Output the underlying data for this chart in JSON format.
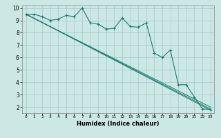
{
  "title": "",
  "xlabel": "Humidex (Indice chaleur)",
  "bg_color": "#cce8e4",
  "grid_color": "#aacccc",
  "line_color": "#1a7a6e",
  "xlim": [
    -0.5,
    23.5
  ],
  "ylim": [
    1.5,
    10.2
  ],
  "yticks": [
    2,
    3,
    4,
    5,
    6,
    7,
    8,
    9,
    10
  ],
  "xticks": [
    0,
    1,
    2,
    3,
    4,
    5,
    6,
    7,
    8,
    9,
    10,
    11,
    12,
    13,
    14,
    15,
    16,
    17,
    18,
    19,
    20,
    21,
    22,
    23
  ],
  "series1_x": [
    0,
    1,
    2,
    3,
    4,
    5,
    6,
    7,
    8,
    9,
    10,
    11,
    12,
    13,
    14,
    15,
    16,
    17,
    18,
    19,
    20,
    21,
    22,
    23
  ],
  "series1_y": [
    9.5,
    9.5,
    9.3,
    9.0,
    9.1,
    9.4,
    9.3,
    10.0,
    8.8,
    8.7,
    8.3,
    8.35,
    9.2,
    8.5,
    8.45,
    8.8,
    6.35,
    6.0,
    6.6,
    3.8,
    3.8,
    2.8,
    1.85,
    1.8
  ],
  "series2_x": [
    0,
    23
  ],
  "series2_y": [
    9.5,
    1.75
  ],
  "series3_x": [
    0,
    23
  ],
  "series3_y": [
    9.5,
    1.85
  ],
  "series4_x": [
    0,
    23
  ],
  "series4_y": [
    9.48,
    2.0
  ]
}
